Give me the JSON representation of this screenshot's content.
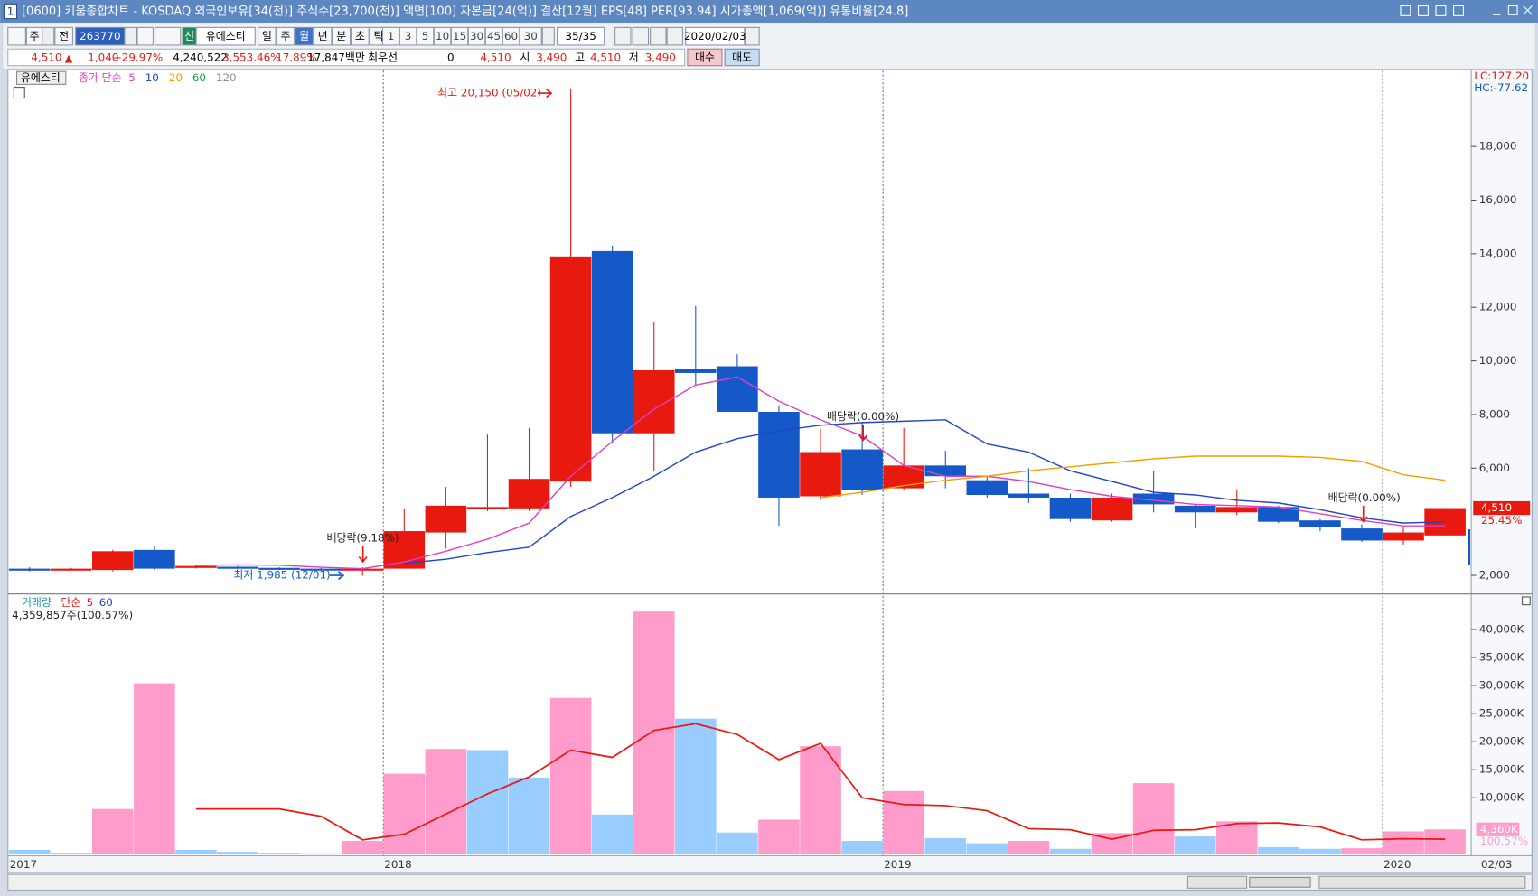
{
  "window": {
    "number": "1",
    "title": "[0600] 키움종합차트 - KOSDAQ 외국인보유[34(천)] 주식수[23,700(천)] 액면[100] 자본금[24(억)] 결산[12월] EPS[48] PER[93.94] 시가총액[1,069(억)] 유통비율[24.8]"
  },
  "toolbar": {
    "market": "주",
    "scope": "전",
    "code": "263770",
    "badge": "신",
    "name": "유에스티",
    "periods": [
      "일",
      "주",
      "월",
      "년",
      "분",
      "초",
      "틱"
    ],
    "intervals": [
      "1",
      "3",
      "5",
      "10",
      "15",
      "30",
      "45",
      "60"
    ],
    "count": "30",
    "page": "35/35",
    "date": "2020/02/03"
  },
  "quote": {
    "price": "4,510",
    "change": "1,040",
    "rate": "+29.97%",
    "volume": "4,240,522",
    "volume_rate": "3,553.46%",
    "turnover": "17.89%",
    "amount": "17,847백만",
    "best": "최우선",
    "best_value": "0",
    "best_price": "4,510",
    "open_label": "시",
    "open": "3,490",
    "high_label": "고",
    "high": "4,510",
    "low_label": "저",
    "low": "3,490",
    "buy": "매수",
    "sell": "매도"
  },
  "chart_data": [
    {
      "type": "candlestick",
      "name": "유에스티",
      "categories": [
        "2017",
        null,
        null,
        null,
        null,
        null,
        null,
        null,
        null,
        "2018",
        null,
        null,
        null,
        null,
        null,
        null,
        null,
        null,
        null,
        null,
        null,
        "2019",
        null,
        null,
        null,
        null,
        null,
        null,
        null,
        null,
        null,
        null,
        null,
        "2020",
        "02/03"
      ],
      "open": [
        2250,
        2200,
        2200,
        2950,
        2300,
        2320,
        2280,
        2250,
        2230,
        2250,
        3600,
        4500,
        4500,
        5500,
        14100,
        7300,
        9700,
        9800,
        8100,
        4950,
        6700,
        5250,
        6100,
        5550,
        5050,
        4900,
        4050,
        5050,
        4600,
        4350,
        4550,
        4050,
        3750,
        3300,
        3490
      ],
      "high": [
        2300,
        2280,
        2950,
        3100,
        2400,
        2350,
        2300,
        2280,
        2300,
        4500,
        5300,
        7250,
        7500,
        20150,
        14300,
        11450,
        12050,
        10250,
        8350,
        7450,
        7700,
        7500,
        6650,
        5700,
        6000,
        5050,
        5050,
        5900,
        4650,
        5200,
        4600,
        4100,
        3900,
        3800,
        4510
      ],
      "low": [
        2150,
        2180,
        2150,
        2200,
        2250,
        2250,
        2200,
        2200,
        1985,
        2250,
        3000,
        4400,
        4400,
        5300,
        6950,
        5900,
        9100,
        8100,
        3850,
        4800,
        5000,
        5200,
        5250,
        4900,
        4700,
        4000,
        4000,
        4350,
        3750,
        4250,
        3950,
        3650,
        3250,
        3150,
        3490
      ],
      "close": [
        2200,
        2250,
        2900,
        2250,
        2350,
        2280,
        2250,
        2230,
        2250,
        3650,
        4600,
        4550,
        5600,
        13900,
        7300,
        9650,
        9550,
        8100,
        4900,
        6600,
        5200,
        6100,
        5700,
        5000,
        4900,
        4100,
        4900,
        4650,
        4350,
        4550,
        4000,
        3800,
        3300,
        3600,
        4510
      ],
      "ma_label": "종가 단순",
      "ma": [
        {
          "name": "5",
          "color": "#e040c0",
          "values": [
            null,
            null,
            null,
            null,
            2380,
            2390,
            2380,
            2300,
            2250,
            2500,
            2900,
            3350,
            3950,
            5700,
            7000,
            8200,
            9100,
            9400,
            8500,
            7800,
            7200,
            6100,
            5700,
            5700,
            5500,
            5200,
            4950,
            4800,
            4650,
            4600,
            4550,
            4300,
            4050,
            3850,
            3850
          ]
        },
        {
          "name": "10",
          "color": "#2244cc",
          "values": [
            null,
            null,
            null,
            null,
            null,
            null,
            null,
            null,
            null,
            2450,
            2600,
            2850,
            3050,
            4200,
            4900,
            5700,
            6600,
            7100,
            7400,
            7600,
            7700,
            7750,
            7800,
            6900,
            6600,
            5900,
            5500,
            5100,
            5000,
            4800,
            4700,
            4450,
            4150,
            3950,
            4000
          ]
        },
        {
          "name": "20",
          "color": "#f0a000",
          "values": [
            null,
            null,
            null,
            null,
            null,
            null,
            null,
            null,
            null,
            null,
            null,
            null,
            null,
            null,
            null,
            null,
            null,
            null,
            null,
            4900,
            5100,
            5350,
            5550,
            5700,
            5900,
            6050,
            6200,
            6350,
            6450,
            6450,
            6450,
            6400,
            6250,
            5750,
            5550
          ]
        },
        {
          "name": "60",
          "color": "#20a040",
          "values": [
            null,
            null,
            null,
            null,
            null,
            null,
            null,
            null,
            null,
            null,
            null,
            null,
            null,
            null,
            null,
            null,
            null,
            null,
            null,
            null,
            null,
            null,
            null,
            null,
            null,
            null,
            null,
            null,
            null,
            null,
            null,
            null,
            null,
            null,
            null
          ]
        },
        {
          "name": "120",
          "color": "#909090",
          "values": [
            null,
            null,
            null,
            null,
            null,
            null,
            null,
            null,
            null,
            null,
            null,
            null,
            null,
            null,
            null,
            null,
            null,
            null,
            null,
            null,
            null,
            null,
            null,
            null,
            null,
            null,
            null,
            null,
            null,
            null,
            null,
            null,
            null,
            null,
            null
          ]
        }
      ],
      "ylim": [
        1340,
        20830
      ],
      "yticks": [
        {
          "value": 2000,
          "label": "2,000"
        },
        {
          "value": 6000,
          "label": "6,000"
        },
        {
          "value": 8000,
          "label": "8,000"
        },
        {
          "value": 10000,
          "label": "10,000"
        },
        {
          "value": 12000,
          "label": "12,000"
        },
        {
          "value": 14000,
          "label": "14,000"
        },
        {
          "value": 16000,
          "label": "16,000"
        },
        {
          "value": 18000,
          "label": "18,000"
        }
      ],
      "annotations": [
        "최고 20,150 (05/02)",
        "최저 1,985 (12/01)",
        "배당락(9.18%)",
        "배당락(0.00%)",
        "배당락(0.00%)"
      ],
      "lc": "LC:127.20",
      "hc": "HC:-77.62",
      "last_label": "4,510",
      "last_rate": "25.45%",
      "up_color": "#e8190e",
      "down_color": "#1558c8"
    },
    {
      "type": "bar",
      "label": "거래량",
      "ma_label": "단순",
      "values": [
        700,
        200,
        8000,
        30400,
        700,
        350,
        200,
        100,
        2300,
        14300,
        18700,
        18500,
        13600,
        27800,
        7000,
        43200,
        24100,
        3800,
        6100,
        19200,
        2300,
        11200,
        2800,
        1900,
        2300,
        900,
        3700,
        12600,
        3100,
        5800,
        1200,
        900,
        1000,
        4000,
        4360
      ],
      "value_label": "4,359,857주(100.57%)",
      "ma": [
        {
          "name": "5",
          "color": "#e8190e",
          "values": [
            null,
            null,
            null,
            null,
            8000,
            8000,
            8000,
            6700,
            2500,
            3500,
            7100,
            10700,
            13700,
            18500,
            17200,
            22000,
            23200,
            21300,
            16800,
            19700,
            10000,
            8800,
            8600,
            7700,
            4500,
            4300,
            2600,
            4200,
            4300,
            5400,
            5500,
            4800,
            2500,
            2700,
            2600
          ]
        },
        {
          "name": "60",
          "color": "#2040c0",
          "values": [
            null,
            null,
            null,
            null,
            null,
            null,
            null,
            null,
            null,
            null,
            null,
            null,
            null,
            null,
            null,
            null,
            null,
            null,
            null,
            null,
            null,
            null,
            null,
            null,
            null,
            null,
            null,
            null,
            null,
            null,
            null,
            null,
            null,
            null,
            null
          ]
        }
      ],
      "ylim": [
        0,
        45800
      ],
      "yticks": [
        {
          "value": 10000,
          "label": "10,000K"
        },
        {
          "value": 15000,
          "label": "15,000K"
        },
        {
          "value": 20000,
          "label": "20,000K"
        },
        {
          "value": 25000,
          "label": "25,000K"
        },
        {
          "value": 30000,
          "label": "30,000K"
        },
        {
          "value": 35000,
          "label": "35,000K"
        },
        {
          "value": 40000,
          "label": "40,000K"
        }
      ],
      "last_label": "4,360K",
      "last_rate": "100.57%",
      "up_color": "#ff9ccc",
      "down_color": "#99ccff"
    }
  ]
}
